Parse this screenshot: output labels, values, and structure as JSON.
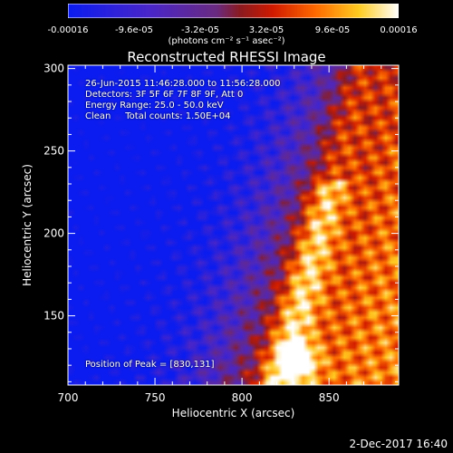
{
  "colorbar": {
    "ticks": [
      "-0.00016",
      "-9.6e-05",
      "-3.2e-05",
      "3.2e-05",
      "9.6e-05",
      "0.00016"
    ],
    "units": "(photons cm⁻² s⁻¹ asec⁻²)",
    "range": [
      -0.00016,
      0.00016
    ]
  },
  "title": "Reconstructed RHESSI Image",
  "info": {
    "time": "26-Jun-2015 11:46:28.000 to 11:56:28.000",
    "detectors": "Detectors: 3F 5F 6F 7F 8F 9F, Att 0",
    "energy": "Energy Range: 25.0 - 50.0 keV",
    "clean": "Clean     Total counts: 1.50E+04",
    "peak": "Position of Peak = [830,131]"
  },
  "footer": "2-Dec-2017 16:40",
  "chart_data": {
    "type": "heatmap",
    "title": "Reconstructed RHESSI Image",
    "xlabel": "Heliocentric X (arcsec)",
    "ylabel": "Heliocentric Y (arcsec)",
    "xlim": [
      700,
      890
    ],
    "ylim": [
      108,
      302
    ],
    "xticks": [
      700,
      750,
      800,
      850
    ],
    "yticks": [
      150,
      200,
      250,
      300
    ],
    "colormap": "blue-purple-red-yellow-white",
    "peak": [
      830,
      131
    ]
  }
}
